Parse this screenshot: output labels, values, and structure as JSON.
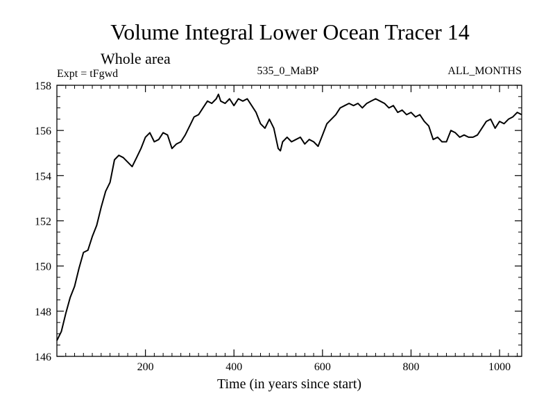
{
  "chart_data": {
    "type": "line",
    "title": "Volume Integral Lower Ocean Tracer 14",
    "subtitle": "Whole area",
    "left_label": "Expt = tFgwd",
    "center_label": "535_0_MaBP",
    "right_label": "ALL_MONTHS",
    "xlabel": "Time (in years since start)",
    "ylabel": "",
    "xlim": [
      0,
      1050
    ],
    "ylim": [
      146,
      158
    ],
    "x_ticks": [
      200,
      400,
      600,
      800,
      1000
    ],
    "y_ticks": [
      146,
      148,
      150,
      152,
      154,
      156,
      158
    ],
    "grid": false,
    "line_color": "#000000",
    "series": [
      {
        "name": "Tracer 14",
        "x": [
          0,
          10,
          20,
          30,
          40,
          50,
          60,
          70,
          80,
          90,
          100,
          110,
          120,
          130,
          140,
          150,
          160,
          170,
          180,
          190,
          200,
          210,
          220,
          230,
          240,
          250,
          260,
          270,
          280,
          290,
          300,
          310,
          320,
          330,
          340,
          350,
          360,
          365,
          370,
          380,
          390,
          400,
          410,
          420,
          430,
          440,
          450,
          460,
          470,
          480,
          490,
          500,
          505,
          510,
          520,
          530,
          540,
          550,
          560,
          570,
          580,
          590,
          600,
          610,
          620,
          630,
          640,
          650,
          660,
          670,
          680,
          690,
          700,
          710,
          720,
          730,
          740,
          750,
          760,
          770,
          780,
          790,
          800,
          810,
          820,
          830,
          840,
          850,
          860,
          870,
          880,
          890,
          900,
          910,
          920,
          930,
          940,
          950,
          960,
          970,
          980,
          990,
          1000,
          1010,
          1020,
          1030,
          1040,
          1050
        ],
        "y": [
          146.7,
          147.1,
          147.9,
          148.6,
          149.1,
          149.9,
          150.6,
          150.7,
          151.3,
          151.8,
          152.6,
          153.3,
          153.7,
          154.7,
          154.9,
          154.8,
          154.6,
          154.4,
          154.8,
          155.2,
          155.7,
          155.9,
          155.5,
          155.6,
          155.9,
          155.8,
          155.2,
          155.4,
          155.5,
          155.8,
          156.2,
          156.6,
          156.7,
          157.0,
          157.3,
          157.2,
          157.4,
          157.6,
          157.3,
          157.2,
          157.4,
          157.1,
          157.4,
          157.3,
          157.4,
          157.1,
          156.8,
          156.3,
          156.1,
          156.5,
          156.1,
          155.2,
          155.1,
          155.5,
          155.7,
          155.5,
          155.6,
          155.7,
          155.4,
          155.6,
          155.5,
          155.3,
          155.8,
          156.3,
          156.5,
          156.7,
          157.0,
          157.1,
          157.2,
          157.1,
          157.2,
          157.0,
          157.2,
          157.3,
          157.4,
          157.3,
          157.2,
          157.0,
          157.1,
          156.8,
          156.9,
          156.7,
          156.8,
          156.6,
          156.7,
          156.4,
          156.2,
          155.6,
          155.7,
          155.5,
          155.5,
          156.0,
          155.9,
          155.7,
          155.8,
          155.7,
          155.7,
          155.8,
          156.1,
          156.4,
          156.5,
          156.1,
          156.4,
          156.3,
          156.5,
          156.6,
          156.8,
          156.7
        ]
      }
    ]
  }
}
